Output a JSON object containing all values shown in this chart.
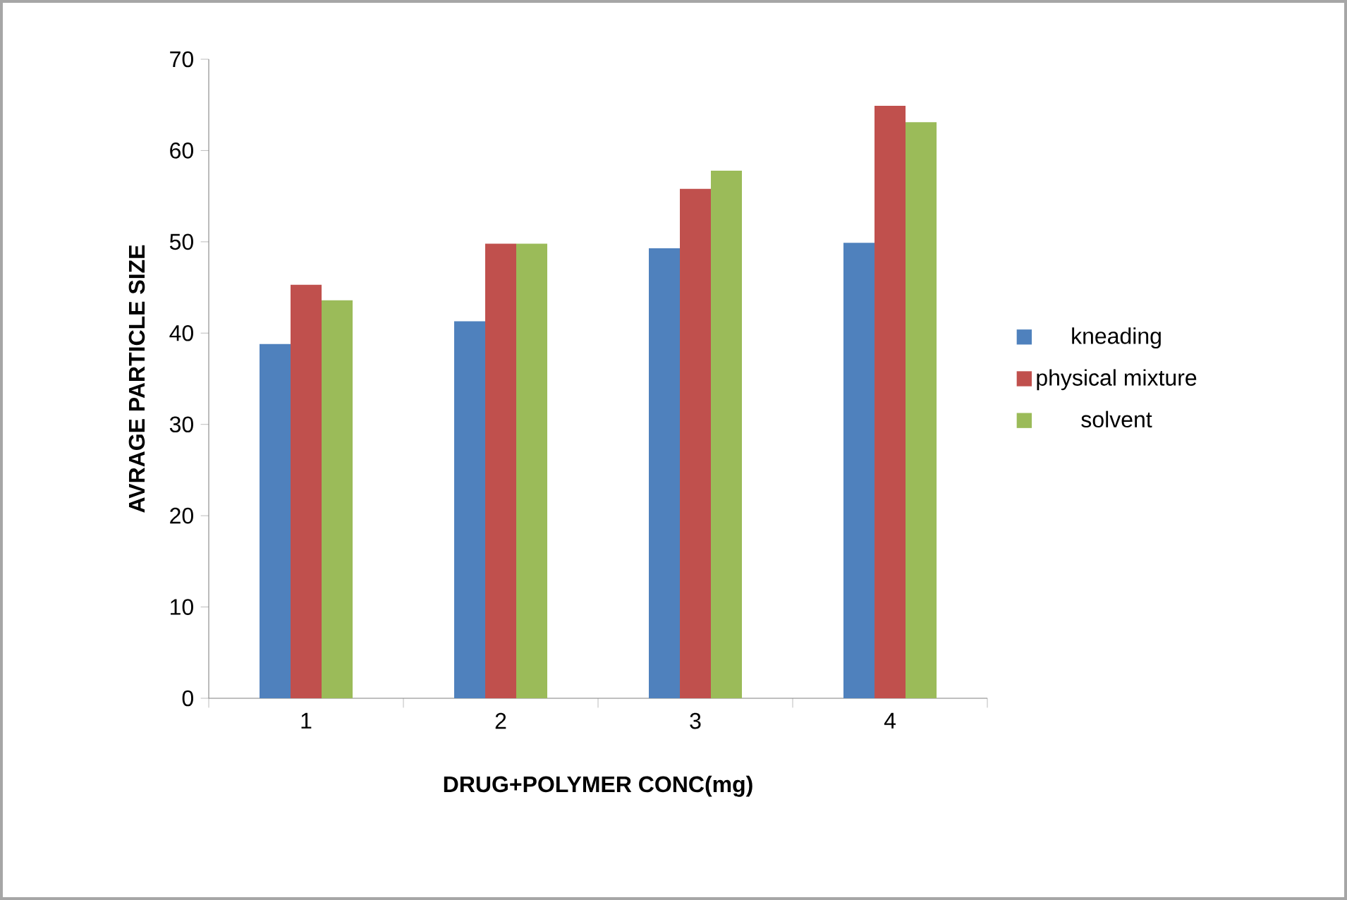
{
  "chart_data": {
    "type": "bar",
    "xlabel": "DRUG+POLYMER CONC(mg)",
    "ylabel": "AVRAGE PARTICLE SIZE",
    "categories": [
      "1",
      "2",
      "3",
      "4"
    ],
    "series": [
      {
        "name": "kneading",
        "color": "#4f81bd",
        "values": [
          38.8,
          41.3,
          49.3,
          49.9
        ]
      },
      {
        "name": "physical mixture",
        "color": "#c0504d",
        "values": [
          45.3,
          49.8,
          55.8,
          64.9
        ]
      },
      {
        "name": "solvent",
        "color": "#9bbb59",
        "values": [
          43.6,
          49.8,
          57.8,
          63.1
        ]
      }
    ],
    "ylim": [
      0,
      70
    ],
    "yticks": [
      0,
      10,
      20,
      30,
      40,
      50,
      60,
      70
    ],
    "grid": false,
    "legend": "right"
  }
}
